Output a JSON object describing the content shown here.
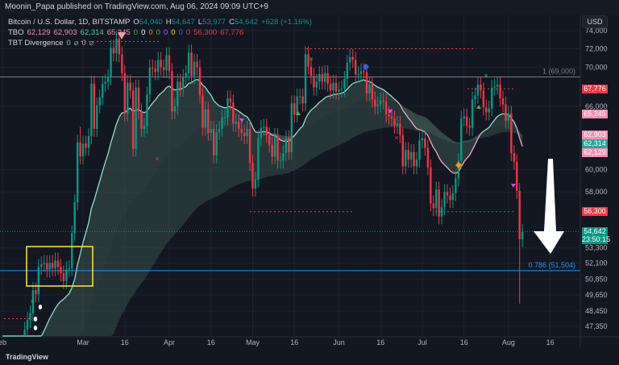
{
  "header": {
    "publisher": "Moonin_Papa published on TradingView.com, Aug 06, 2024 09:09 UTC+9"
  },
  "legend": {
    "symbol": "Bitcoin / U.S. Dollar, 1D, BITSTAMP",
    "o_label": "O",
    "o": "54,040",
    "h_label": "H",
    "h": "54,647",
    "l_label": "L",
    "l": "53,977",
    "c_label": "C",
    "c": "54,642",
    "change": "+628 (+1.16%)",
    "tbo_label": "TBO",
    "tbo_values": [
      {
        "v": "62,129",
        "color": "#f48fb1"
      },
      {
        "v": "62,903",
        "color": "#f48fb1"
      },
      {
        "v": "62,314",
        "color": "#4dd0a0"
      },
      {
        "v": "65,245",
        "color": "#f48fb1"
      },
      {
        "v": "0",
        "color": "#4caf50"
      },
      {
        "v": "0",
        "color": "#ffffff"
      },
      {
        "v": "0",
        "color": "#ff9800"
      },
      {
        "v": "0",
        "color": "#4caf50"
      },
      {
        "v": "0",
        "color": "#e040fb"
      },
      {
        "v": "0",
        "color": "#fdd835"
      },
      {
        "v": "0",
        "color": "#2962ff"
      },
      {
        "v": "0",
        "color": "#f23645"
      },
      {
        "v": "56,300",
        "color": "#f23645"
      },
      {
        "v": "67,776",
        "color": "#f23645"
      }
    ],
    "tbt_label": "TBT Divergence",
    "tbt_values": [
      {
        "v": "0",
        "color": "#81c784"
      },
      {
        "v": "⌀",
        "color": "#9598a1"
      },
      {
        "v": "0",
        "color": "#f48fb1"
      },
      {
        "v": "⌀",
        "color": "#9598a1"
      }
    ]
  },
  "currency": "USD",
  "price_labels": [
    {
      "text": "67,776",
      "price": 67776,
      "color": "#f23645"
    },
    {
      "text": "65,245",
      "price": 65245,
      "color": "#f48fb1"
    },
    {
      "text": "62,903",
      "price": 63250,
      "color": "#f48fb1"
    },
    {
      "text": "62,314",
      "price": 62380,
      "color": "#26a69a"
    },
    {
      "text": "62,129",
      "price": 61550,
      "color": "#f48fb1"
    },
    {
      "text": "56,300",
      "price": 56300,
      "color": "#f23645"
    },
    {
      "text": "54,642",
      "price": 54642,
      "color": "#089981"
    },
    {
      "text": "23:50:15",
      "price": 53950,
      "color": "#089981"
    }
  ],
  "fib": [
    {
      "text": "1 (69,000)",
      "price": 69000,
      "color": "#787b86"
    },
    {
      "text": "0.786 (51,504)",
      "price": 51504,
      "color": "#2196f3"
    }
  ],
  "footer": {
    "brand": "TradingView"
  },
  "chart_data": {
    "type": "candlestick",
    "title": "Bitcoin / U.S. Dollar, 1D, BITSTAMP",
    "start_date": "2024-02-01",
    "closes_k": [
      43.1,
      43.2,
      43.0,
      42.6,
      42.7,
      43.1,
      44.3,
      45.3,
      47.1,
      47.8,
      48.3,
      50.0,
      49.7,
      51.8,
      52.0,
      52.1,
      51.6,
      52.1,
      51.7,
      52.3,
      51.8,
      51.3,
      50.7,
      51.6,
      51.7,
      54.5,
      57.1,
      62.5,
      61.2,
      62.4,
      62.0,
      63.1,
      68.3,
      63.8,
      66.1,
      66.9,
      68.3,
      68.5,
      69.0,
      72.1,
      71.5,
      73.1,
      71.4,
      69.4,
      65.3,
      68.4,
      67.6,
      61.9,
      67.9,
      65.5,
      63.8,
      64.1,
      67.2,
      70.0,
      69.9,
      69.5,
      70.8,
      70.0,
      69.7,
      71.3,
      69.6,
      65.5,
      66.0,
      68.5,
      67.8,
      69.0,
      69.4,
      71.6,
      69.1,
      70.6,
      70.0,
      67.1,
      63.9,
      65.7,
      63.4,
      63.8,
      61.3,
      63.5,
      63.8,
      64.9,
      64.9,
      66.8,
      66.4,
      64.3,
      64.5,
      63.8,
      63.4,
      63.1,
      63.8,
      60.6,
      58.3,
      59.1,
      62.9,
      63.9,
      64.0,
      63.2,
      62.3,
      61.2,
      63.1,
      60.8,
      60.8,
      61.5,
      62.9,
      61.6,
      66.3,
      65.2,
      67.0,
      67.0,
      66.3,
      71.4,
      70.1,
      69.1,
      67.9,
      68.5,
      69.3,
      68.5,
      69.4,
      68.3,
      67.6,
      68.4,
      67.5,
      67.7,
      67.8,
      68.8,
      70.5,
      71.1,
      70.8,
      69.3,
      69.3,
      69.6,
      69.5,
      67.3,
      68.2,
      66.7,
      66.0,
      66.2,
      66.6,
      66.5,
      65.2,
      65.0,
      64.8,
      64.1,
      64.3,
      63.2,
      60.3,
      61.8,
      60.9,
      61.6,
      60.3,
      60.9,
      62.7,
      62.9,
      62.0,
      60.2,
      57.0,
      56.6,
      58.2,
      55.9,
      56.7,
      58.0,
      57.7,
      57.3,
      57.9,
      59.2,
      60.8,
      64.8,
      65.0,
      64.1,
      63.9,
      66.7,
      67.1,
      68.2,
      67.6,
      65.9,
      65.4,
      65.8,
      67.9,
      68.0,
      68.2,
      66.8,
      66.2,
      64.6,
      65.3,
      61.5,
      60.7,
      58.1,
      54.0,
      54.6
    ],
    "y_ticks": [
      "74,000",
      "72,000",
      "70,000",
      "66,000",
      "60,000",
      "58,000",
      "53,300",
      "52,100",
      "50,850",
      "49,650",
      "48,450",
      "47,350"
    ],
    "y_tick_values": [
      74000,
      72000,
      70000,
      66000,
      60000,
      58000,
      53300,
      52100,
      50850,
      49650,
      48450,
      47350
    ],
    "x_ticks": [
      {
        "label": "eb",
        "day": 0
      },
      {
        "label": "Mar",
        "day": 29
      },
      {
        "label": "16",
        "day": 44
      },
      {
        "label": "Apr",
        "day": 60
      },
      {
        "label": "16",
        "day": 75
      },
      {
        "label": "May",
        "day": 90
      },
      {
        "label": "16",
        "day": 105
      },
      {
        "label": "Jun",
        "day": 121
      },
      {
        "label": "16",
        "day": 136
      },
      {
        "label": "Jul",
        "day": 151
      },
      {
        "label": "16",
        "day": 166
      },
      {
        "label": "Aug",
        "day": 182
      },
      {
        "label": "16",
        "day": 197
      }
    ],
    "up_color": "#089981",
    "down_color": "#f23645",
    "scale": "log"
  }
}
